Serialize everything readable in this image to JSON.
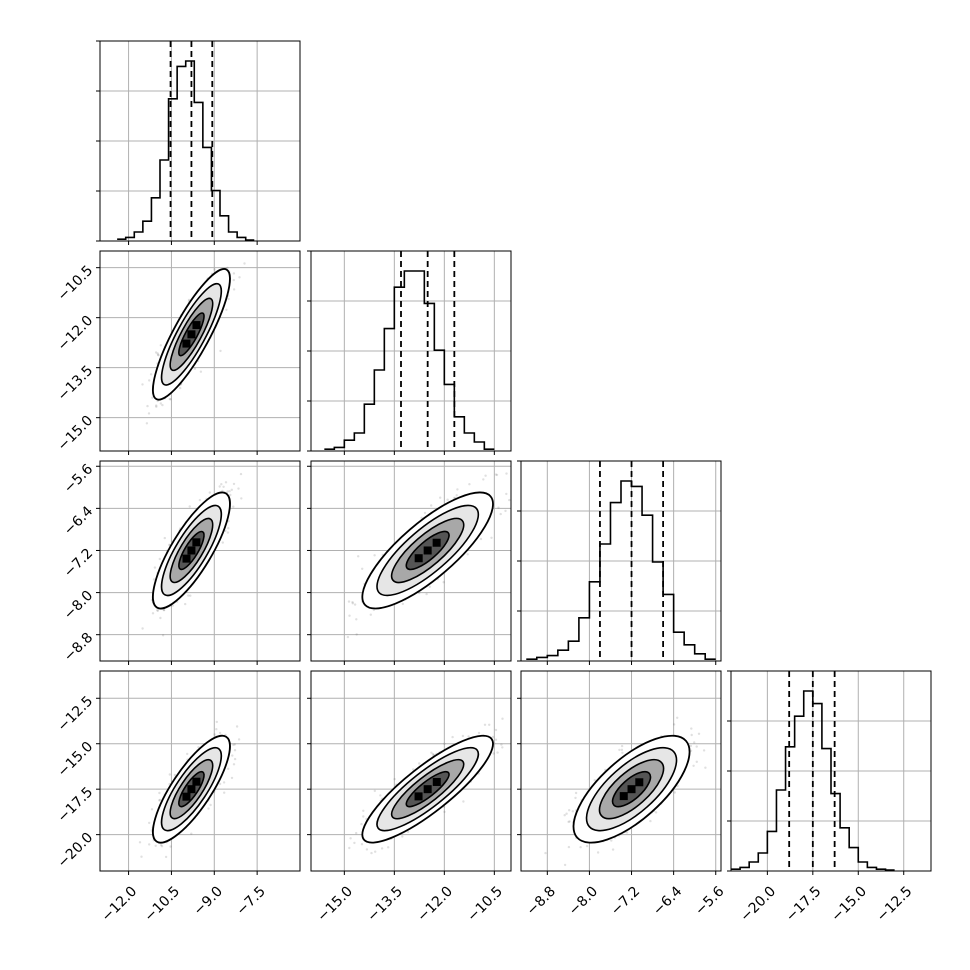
{
  "chart_data": [
    {
      "type": "histogram",
      "panel": "param-1-marginal",
      "xlim": [
        -13.0,
        -6.0
      ],
      "bins": [
        -12.4,
        -12.1,
        -11.8,
        -11.5,
        -11.2,
        -10.9,
        -10.6,
        -10.3,
        -10.0,
        -9.7,
        -9.4,
        -9.1,
        -8.8,
        -8.5,
        -8.2,
        -7.9,
        -7.6
      ],
      "counts": [
        0.01,
        0.02,
        0.05,
        0.11,
        0.24,
        0.45,
        0.79,
        0.97,
        1.0,
        0.77,
        0.52,
        0.28,
        0.14,
        0.05,
        0.02,
        0.005
      ],
      "quantiles": [
        -10.53,
        -9.8,
        -9.07
      ],
      "x_ticks": [
        -12.0,
        -10.5,
        -9.0,
        -7.5
      ],
      "grid": true
    },
    {
      "type": "histogram",
      "panel": "param-2-marginal",
      "xlim": [
        -16.0,
        -10.0
      ],
      "bins": [
        -15.6,
        -15.3,
        -15.0,
        -14.7,
        -14.4,
        -14.1,
        -13.8,
        -13.5,
        -13.2,
        -12.9,
        -12.6,
        -12.3,
        -12.0,
        -11.7,
        -11.4,
        -11.1,
        -10.8,
        -10.5
      ],
      "counts": [
        0.01,
        0.02,
        0.06,
        0.1,
        0.26,
        0.45,
        0.68,
        0.91,
        1.0,
        1.0,
        0.82,
        0.56,
        0.37,
        0.19,
        0.1,
        0.05,
        0.01
      ],
      "quantiles": [
        -13.3,
        -12.5,
        -11.7
      ],
      "x_ticks": [
        -15.0,
        -13.5,
        -12.0,
        -10.5
      ],
      "grid": true
    },
    {
      "type": "histogram",
      "panel": "param-3-marginal",
      "xlim": [
        -9.3,
        -5.5
      ],
      "bins": [
        -9.2,
        -9.0,
        -8.8,
        -8.6,
        -8.4,
        -8.2,
        -8.0,
        -7.8,
        -7.6,
        -7.4,
        -7.2,
        -7.0,
        -6.8,
        -6.6,
        -6.4,
        -6.2,
        -6.0,
        -5.8,
        -5.6
      ],
      "counts": [
        0.01,
        0.02,
        0.03,
        0.06,
        0.11,
        0.24,
        0.44,
        0.65,
        0.88,
        1.0,
        0.97,
        0.81,
        0.55,
        0.37,
        0.16,
        0.09,
        0.04,
        0.01
      ],
      "quantiles": [
        -7.8,
        -7.2,
        -6.6
      ],
      "x_ticks": [
        -8.8,
        -8.0,
        -7.2,
        -6.4,
        -5.6
      ],
      "grid": true
    },
    {
      "type": "histogram",
      "panel": "param-4-marginal",
      "xlim": [
        -22.0,
        -11.0
      ],
      "bins": [
        -22.0,
        -21.5,
        -21.0,
        -20.5,
        -20.0,
        -19.5,
        -19.0,
        -18.5,
        -18.0,
        -17.5,
        -17.0,
        -16.5,
        -16.0,
        -15.5,
        -15.0,
        -14.5,
        -14.0,
        -13.5,
        -13.0
      ],
      "counts": [
        0.01,
        0.02,
        0.05,
        0.1,
        0.22,
        0.45,
        0.69,
        0.86,
        1.0,
        0.93,
        0.68,
        0.43,
        0.24,
        0.13,
        0.05,
        0.02,
        0.01,
        0.005
      ],
      "quantiles": [
        -18.8,
        -17.5,
        -16.3
      ],
      "x_ticks": [
        -20.0,
        -17.5,
        -15.0,
        -12.5
      ],
      "grid": true
    },
    {
      "type": "scatter",
      "panel": "param-2-vs-param-1",
      "x_param": 1,
      "y_param": 2,
      "xlim": [
        -13.0,
        -6.0
      ],
      "ylim": [
        -16.0,
        -10.0
      ],
      "mean": [
        -9.8,
        -12.5
      ],
      "sd": [
        0.55,
        0.8
      ],
      "correlation": 0.85,
      "x_ticks": [
        -12.0,
        -10.5,
        -9.0,
        -7.5
      ],
      "y_ticks": [
        -10.5,
        -12.0,
        -13.5,
        -15.0
      ],
      "grid": true
    },
    {
      "type": "scatter",
      "panel": "param-3-vs-param-1",
      "x_param": 1,
      "y_param": 3,
      "xlim": [
        -13.0,
        -6.0
      ],
      "ylim": [
        -9.3,
        -5.5
      ],
      "mean": [
        -9.8,
        -7.2
      ],
      "sd": [
        0.55,
        0.45
      ],
      "correlation": 0.8,
      "x_ticks": [
        -12.0,
        -10.5,
        -9.0,
        -7.5
      ],
      "y_ticks": [
        -5.6,
        -6.4,
        -7.2,
        -8.0,
        -8.8
      ],
      "grid": true
    },
    {
      "type": "scatter",
      "panel": "param-3-vs-param-2",
      "x_param": 2,
      "y_param": 3,
      "xlim": [
        -16.0,
        -10.0
      ],
      "ylim": [
        -9.3,
        -5.5
      ],
      "mean": [
        -12.5,
        -7.2
      ],
      "sd": [
        0.8,
        0.45
      ],
      "correlation": 0.8,
      "x_ticks": [
        -15.0,
        -13.5,
        -12.0,
        -10.5
      ],
      "y_ticks": [
        -5.6,
        -6.4,
        -7.2,
        -8.0,
        -8.8
      ],
      "grid": true
    },
    {
      "type": "scatter",
      "panel": "param-4-vs-param-1",
      "x_param": 1,
      "y_param": 4,
      "xlim": [
        -13.0,
        -6.0
      ],
      "ylim": [
        -22.0,
        -11.0
      ],
      "mean": [
        -9.8,
        -17.5
      ],
      "sd": [
        0.55,
        1.2
      ],
      "correlation": 0.8,
      "x_ticks": [
        -12.0,
        -10.5,
        -9.0,
        -7.5
      ],
      "y_ticks": [
        -12.5,
        -15.0,
        -17.5,
        -20.0
      ],
      "grid": true
    },
    {
      "type": "scatter",
      "panel": "param-4-vs-param-2",
      "x_param": 2,
      "y_param": 4,
      "xlim": [
        -16.0,
        -10.0
      ],
      "ylim": [
        -22.0,
        -11.0
      ],
      "mean": [
        -12.5,
        -17.5
      ],
      "sd": [
        0.8,
        1.2
      ],
      "correlation": 0.85,
      "x_ticks": [
        -15.0,
        -13.5,
        -12.0,
        -10.5
      ],
      "y_ticks": [
        -12.5,
        -15.0,
        -17.5,
        -20.0
      ],
      "grid": true
    },
    {
      "type": "scatter",
      "panel": "param-4-vs-param-3",
      "x_param": 3,
      "y_param": 4,
      "xlim": [
        -9.3,
        -5.5
      ],
      "ylim": [
        -22.0,
        -11.0
      ],
      "mean": [
        -7.2,
        -17.5
      ],
      "sd": [
        0.45,
        1.2
      ],
      "correlation": 0.7,
      "x_ticks": [
        -8.8,
        -8.0,
        -7.2,
        -6.4,
        -5.6
      ],
      "y_ticks": [
        -12.5,
        -15.0,
        -17.5,
        -20.0
      ],
      "grid": true
    }
  ]
}
